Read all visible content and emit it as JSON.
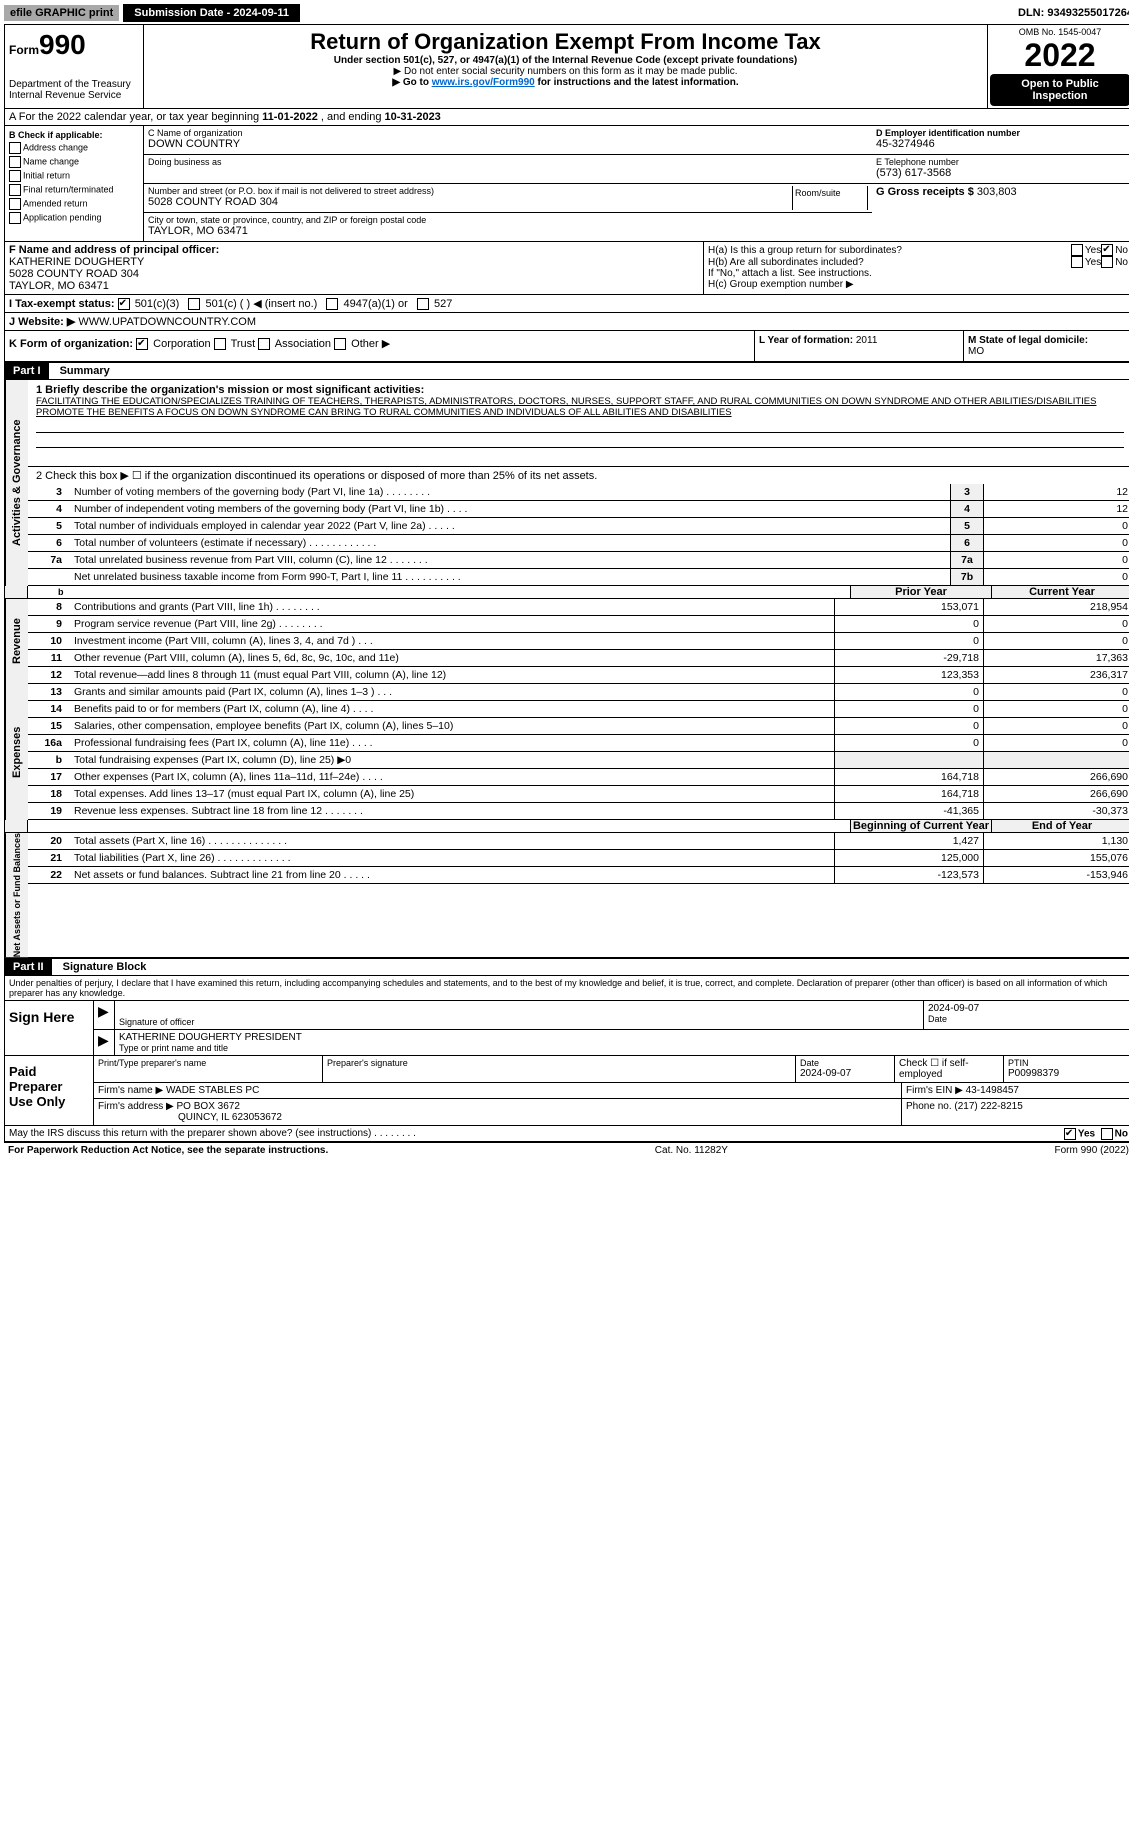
{
  "top": {
    "efile": "efile GRAPHIC print",
    "submission_label": "Submission Date - 2024-09-11",
    "dln": "DLN: 93493255017264"
  },
  "header": {
    "form_prefix": "Form",
    "form_number": "990",
    "dept": "Department of the Treasury",
    "irs": "Internal Revenue Service",
    "title": "Return of Organization Exempt From Income Tax",
    "subtitle": "Under section 501(c), 527, or 4947(a)(1) of the Internal Revenue Code (except private foundations)",
    "note1": "▶ Do not enter social security numbers on this form as it may be made public.",
    "note2_pre": "▶ Go to ",
    "note2_link": "www.irs.gov/Form990",
    "note2_post": " for instructions and the latest information.",
    "omb": "OMB No. 1545-0047",
    "year": "2022",
    "open": "Open to Public Inspection"
  },
  "rowA": {
    "text_pre": "A For the 2022 calendar year, or tax year beginning ",
    "begin": "11-01-2022",
    "mid": " , and ending ",
    "end": "10-31-2023"
  },
  "colB": {
    "header": "B Check if applicable:",
    "items": [
      "Address change",
      "Name change",
      "Initial return",
      "Final return/terminated",
      "Amended return",
      "Application pending"
    ]
  },
  "colC": {
    "name_label": "C Name of organization",
    "name": "DOWN COUNTRY",
    "dba_label": "Doing business as",
    "dba": "",
    "street_label": "Number and street (or P.O. box if mail is not delivered to street address)",
    "street": "5028 COUNTY ROAD 304",
    "room_label": "Room/suite",
    "city_label": "City or town, state or province, country, and ZIP or foreign postal code",
    "city": "TAYLOR, MO  63471"
  },
  "colD": {
    "ein_label": "D Employer identification number",
    "ein": "45-3274946",
    "phone_label": "E Telephone number",
    "phone": "(573) 617-3568",
    "gross_label": "G Gross receipts $",
    "gross": "303,803"
  },
  "colF": {
    "label": "F Name and address of principal officer:",
    "name": "KATHERINE DOUGHERTY",
    "street": "5028 COUNTY ROAD 304",
    "city": "TAYLOR, MO  63471"
  },
  "colH": {
    "a": "H(a)  Is this a group return for subordinates?",
    "a_no": "No",
    "b": "H(b)  Are all subordinates included?",
    "b_note": "If \"No,\" attach a list. See instructions.",
    "c": "H(c)  Group exemption number ▶"
  },
  "rowI": {
    "label": "I  Tax-exempt status:",
    "opt1": "501(c)(3)",
    "opt2": "501(c) (   ) ◀ (insert no.)",
    "opt3": "4947(a)(1) or",
    "opt4": "527"
  },
  "rowJ": {
    "label": "J  Website: ▶",
    "value": "WWW.UPATDOWNCOUNTRY.COM"
  },
  "rowK": {
    "label": "K Form of organization:",
    "opts": [
      "Corporation",
      "Trust",
      "Association",
      "Other ▶"
    ]
  },
  "rowL": {
    "label": "L Year of formation:",
    "value": "2011"
  },
  "rowM": {
    "label": "M State of legal domicile:",
    "value": "MO"
  },
  "part1": {
    "header": "Part I",
    "title": "Summary",
    "line1_label": "1  Briefly describe the organization's mission or most significant activities:",
    "mission": "FACILITATING THE EDUCATION/SPECIALIZES TRAINING OF TEACHERS, THERAPISTS, ADMINISTRATORS, DOCTORS, NURSES, SUPPORT STAFF, AND RURAL COMMUNITIES ON DOWN SYNDROME AND OTHER ABILITIES/DISABILITIES PROMOTE THE BENEFITS A FOCUS ON DOWN SYNDROME CAN BRING TO RURAL COMMUNITIES AND INDIVIDUALS OF ALL ABILITIES AND DISABILITIES",
    "line2": "2    Check this box ▶ ☐ if the organization discontinued its operations or disposed of more than 25% of its net assets.",
    "governance": {
      "label": "Activities & Governance",
      "rows": [
        {
          "n": "3",
          "desc": "Number of voting members of the governing body (Part VI, line 1a)   .    .    .    .    .    .    .    .",
          "box": "3",
          "val": "12"
        },
        {
          "n": "4",
          "desc": "Number of independent voting members of the governing body (Part VI, line 1b)    .    .    .    .",
          "box": "4",
          "val": "12"
        },
        {
          "n": "5",
          "desc": "Total number of individuals employed in calendar year 2022 (Part V, line 2a)   .    .    .    .    .",
          "box": "5",
          "val": "0"
        },
        {
          "n": "6",
          "desc": "Total number of volunteers (estimate if necessary)    .    .    .    .    .    .    .    .    .    .    .    .",
          "box": "6",
          "val": "0"
        },
        {
          "n": "7a",
          "desc": "Total unrelated business revenue from Part VIII, column (C), line 12   .    .    .    .    .    .    .",
          "box": "7a",
          "val": "0"
        },
        {
          "n": "",
          "desc": "Net unrelated business taxable income from Form 990-T, Part I, line 11   .    .    .    .    .    .    .    .    .    .",
          "box": "7b",
          "val": "0"
        }
      ]
    },
    "rev_hdr": {
      "prior": "Prior Year",
      "current": "Current Year"
    },
    "revenue": {
      "label": "Revenue",
      "rows": [
        {
          "n": "8",
          "desc": "Contributions and grants (Part VIII, line 1h)   .    .    .    .    .    .    .    .",
          "py": "153,071",
          "cy": "218,954"
        },
        {
          "n": "9",
          "desc": "Program service revenue (Part VIII, line 2g)    .    .    .    .    .    .    .    .",
          "py": "0",
          "cy": "0"
        },
        {
          "n": "10",
          "desc": "Investment income (Part VIII, column (A), lines 3, 4, and 7d )    .    .    .",
          "py": "0",
          "cy": "0"
        },
        {
          "n": "11",
          "desc": "Other revenue (Part VIII, column (A), lines 5, 6d, 8c, 9c, 10c, and 11e)",
          "py": "-29,718",
          "cy": "17,363"
        },
        {
          "n": "12",
          "desc": "Total revenue—add lines 8 through 11 (must equal Part VIII, column (A), line 12)",
          "py": "123,353",
          "cy": "236,317"
        }
      ]
    },
    "expenses": {
      "label": "Expenses",
      "rows": [
        {
          "n": "13",
          "desc": "Grants and similar amounts paid (Part IX, column (A), lines 1–3 )   .    .    .",
          "py": "0",
          "cy": "0"
        },
        {
          "n": "14",
          "desc": "Benefits paid to or for members (Part IX, column (A), line 4)   .    .    .    .",
          "py": "0",
          "cy": "0"
        },
        {
          "n": "15",
          "desc": "Salaries, other compensation, employee benefits (Part IX, column (A), lines 5–10)",
          "py": "0",
          "cy": "0"
        },
        {
          "n": "16a",
          "desc": "Professional fundraising fees (Part IX, column (A), line 11e)   .    .    .    .",
          "py": "0",
          "cy": "0"
        },
        {
          "n": "b",
          "desc": "Total fundraising expenses (Part IX, column (D), line 25) ▶0",
          "py": "",
          "cy": ""
        },
        {
          "n": "17",
          "desc": "Other expenses (Part IX, column (A), lines 11a–11d, 11f–24e)   .    .    .    .",
          "py": "164,718",
          "cy": "266,690"
        },
        {
          "n": "18",
          "desc": "Total expenses. Add lines 13–17 (must equal Part IX, column (A), line 25)",
          "py": "164,718",
          "cy": "266,690"
        },
        {
          "n": "19",
          "desc": "Revenue less expenses. Subtract line 18 from line 12   .    .    .    .    .    .    .",
          "py": "-41,365",
          "cy": "-30,373"
        }
      ]
    },
    "net_hdr": {
      "begin": "Beginning of Current Year",
      "end": "End of Year"
    },
    "netassets": {
      "label": "Net Assets or Fund Balances",
      "rows": [
        {
          "n": "20",
          "desc": "Total assets (Part X, line 16)   .    .    .    .    .    .    .    .    .    .    .    .    .    .",
          "py": "1,427",
          "cy": "1,130"
        },
        {
          "n": "21",
          "desc": "Total liabilities (Part X, line 26)   .    .    .    .    .    .    .    .    .    .    .    .    .",
          "py": "125,000",
          "cy": "155,076"
        },
        {
          "n": "22",
          "desc": "Net assets or fund balances. Subtract line 21 from line 20   .    .    .    .    .",
          "py": "-123,573",
          "cy": "-153,946"
        }
      ]
    }
  },
  "part2": {
    "header": "Part II",
    "title": "Signature Block",
    "penalty": "Under penalties of perjury, I declare that I have examined this return, including accompanying schedules and statements, and to the best of my knowledge and belief, it is true, correct, and complete. Declaration of preparer (other than officer) is based on all information of which preparer has any knowledge.",
    "sign_here": "Sign Here",
    "sig_officer": "Signature of officer",
    "sig_date": "2024-09-07",
    "date_label": "Date",
    "officer_name": "KATHERINE DOUGHERTY  PRESIDENT",
    "type_name": "Type or print name and title",
    "paid": "Paid Preparer Use Only",
    "prep_name_label": "Print/Type preparer's name",
    "prep_name": "",
    "prep_sig_label": "Preparer's signature",
    "prep_date_label": "Date",
    "prep_date": "2024-09-07",
    "check_self": "Check ☐ if self-employed",
    "ptin_label": "PTIN",
    "ptin": "P00998379",
    "firm_name_label": "Firm's name    ▶",
    "firm_name": "WADE STABLES PC",
    "firm_ein_label": "Firm's EIN ▶",
    "firm_ein": "43-1498457",
    "firm_addr_label": "Firm's address ▶",
    "firm_addr1": "PO BOX 3672",
    "firm_addr2": "QUINCY, IL  623053672",
    "firm_phone_label": "Phone no.",
    "firm_phone": "(217) 222-8215",
    "discuss": "May the IRS discuss this return with the preparer shown above? (see instructions)   .    .    .    .    .    .    .    .",
    "discuss_yes": "Yes",
    "discuss_no": "No"
  },
  "footer": {
    "left": "For Paperwork Reduction Act Notice, see the separate instructions.",
    "mid": "Cat. No. 11282Y",
    "right": "Form 990 (2022)"
  }
}
